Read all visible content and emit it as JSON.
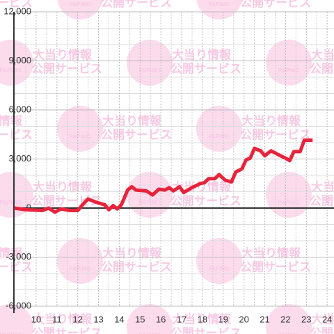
{
  "watermark": {
    "logo": "PAPIMO",
    "line1": "大当り情報",
    "line2": "公開サービス"
  },
  "chart_data": {
    "type": "line",
    "xlim": [
      8.93,
      24.33
    ],
    "xticks": [
      10,
      11,
      12,
      13,
      14,
      15,
      16,
      17,
      18,
      19,
      20,
      21,
      22,
      23,
      24
    ],
    "x_minor_ticks": [
      9.5,
      10.5,
      11.5,
      12.5,
      13.5,
      14.5,
      15.5,
      16.5,
      17.5,
      18.5,
      19.5,
      20.5,
      21.5,
      22.5,
      23.5
    ],
    "ylim": [
      -6000,
      12000
    ],
    "yticks": [
      {
        "value": -6000,
        "label": "-6,000"
      },
      {
        "value": -3000,
        "label": "-3,000"
      },
      0,
      {
        "value": 3000,
        "label": "3,000"
      },
      {
        "value": 6000,
        "label": "6,000"
      },
      {
        "value": 9000,
        "label": "9,000"
      },
      {
        "value": 12000,
        "label": "12,000"
      }
    ],
    "y_minor_ticks": [
      -5000,
      -4000,
      -2000,
      -1000,
      1000,
      2000,
      4000,
      5000,
      7000,
      8000,
      10000,
      11000
    ],
    "grid": true,
    "series": [
      {
        "color": "#e8233a",
        "x": [
          8.95,
          9.5,
          10.3,
          10.6,
          10.9,
          11.2,
          11.6,
          12.0,
          12.3,
          12.5,
          12.9,
          13.3,
          13.5,
          13.7,
          13.9,
          14.1,
          14.4,
          14.6,
          14.8,
          15.3,
          15.6,
          15.9,
          16.2,
          16.4,
          16.6,
          16.9,
          17.1,
          17.5,
          17.9,
          18.1,
          18.3,
          18.6,
          18.8,
          19.1,
          19.4,
          19.6,
          19.9,
          20.1,
          20.3,
          20.5,
          20.8,
          21.0,
          21.3,
          21.6,
          22.0,
          22.2,
          22.4,
          22.7,
          22.9,
          23.3
        ],
        "values": [
          0,
          -100,
          -150,
          0,
          -250,
          -50,
          -150,
          -150,
          300,
          550,
          350,
          200,
          -100,
          150,
          -50,
          200,
          1100,
          1300,
          1100,
          1050,
          800,
          1150,
          1100,
          1250,
          1050,
          1300,
          950,
          1250,
          1500,
          1550,
          1800,
          1800,
          2050,
          1700,
          1600,
          2200,
          2400,
          2950,
          3050,
          3650,
          3500,
          3200,
          3500,
          3300,
          3050,
          2900,
          3450,
          3450,
          4150,
          4150
        ]
      }
    ]
  }
}
